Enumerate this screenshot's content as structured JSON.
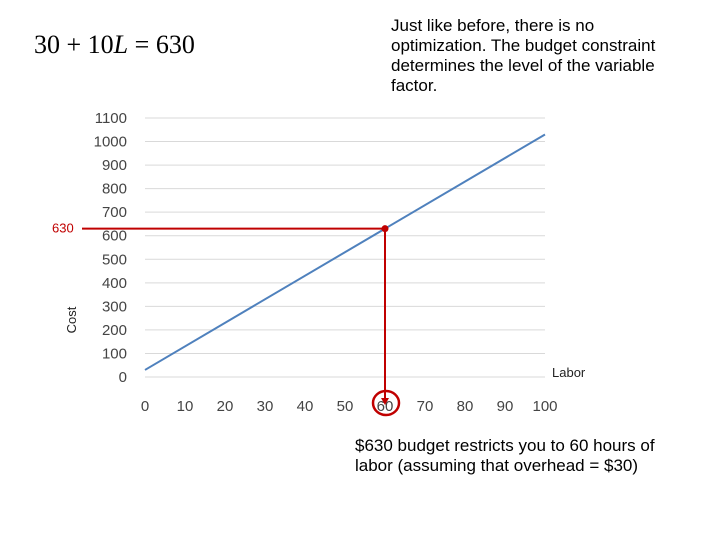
{
  "equation": {
    "constant": "30",
    "plus": " + ",
    "coef": "10",
    "variable": "L",
    "equals": " = ",
    "result": "630"
  },
  "note_text": "Just like before, there is no optimization.  The budget constraint determines the level of the variable factor.",
  "budget_note_text": "$630 budget restricts you to 60 hours of labor (assuming that overhead = $30)",
  "colors": {
    "line": "#4f81bd",
    "marker": "#c00000",
    "grid": "#d9d9d9"
  },
  "chart_data": {
    "type": "line",
    "xlabel": "Labor",
    "ylabel": "Cost",
    "xlim": [
      0,
      100
    ],
    "ylim": [
      0,
      1100
    ],
    "x_ticks": [
      0,
      10,
      20,
      30,
      40,
      50,
      60,
      70,
      80,
      90,
      100
    ],
    "y_ticks": [
      0,
      100,
      200,
      300,
      400,
      500,
      600,
      700,
      800,
      900,
      1000,
      1100
    ],
    "grid": "horizontal",
    "series": [
      {
        "x": [
          0,
          100
        ],
        "y": [
          30,
          1030
        ]
      }
    ],
    "highlight": {
      "x": 60,
      "y": 630,
      "label": "630"
    }
  }
}
